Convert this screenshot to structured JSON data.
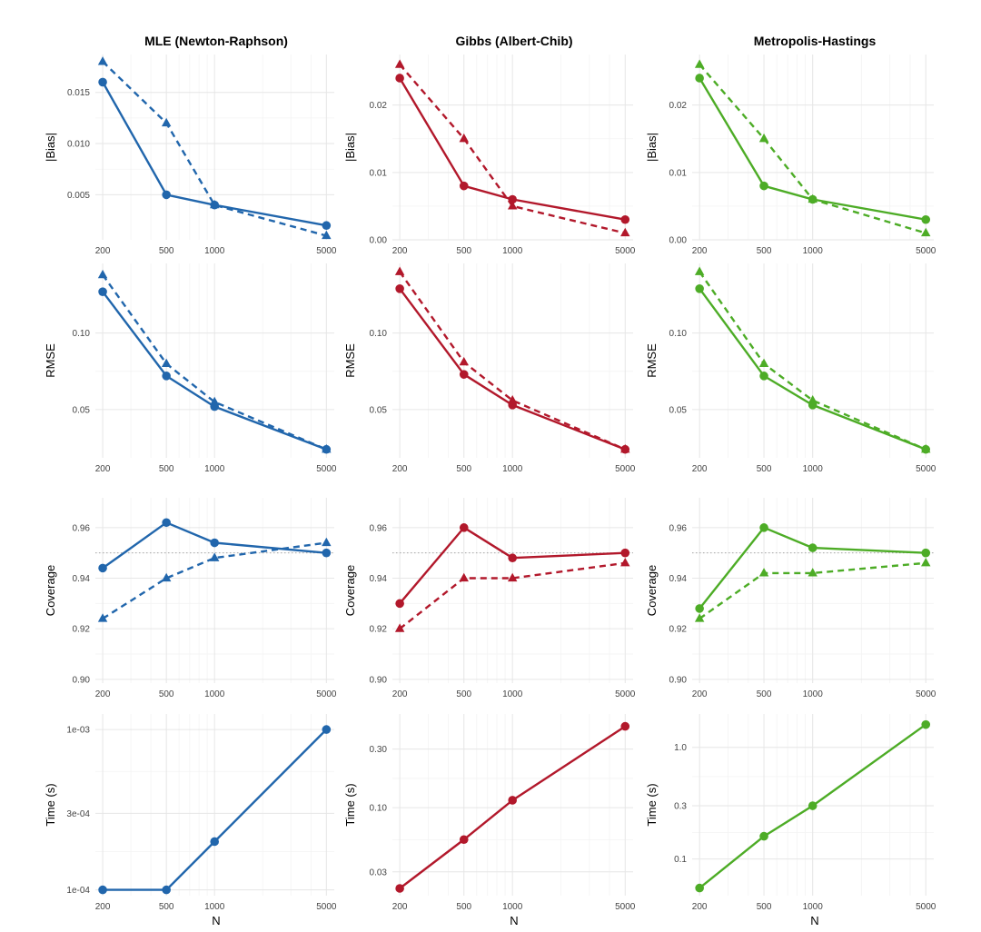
{
  "column_titles": [
    "MLE (Newton-Raphson)",
    "Gibbs (Albert-Chib)",
    "Metropolis-Hastings"
  ],
  "colors": [
    "#2166ac",
    "#b2182b",
    "#4dac26"
  ],
  "x_axis_label": "N",
  "chart_data": [
    {
      "type": "line",
      "row": 0,
      "col": 0,
      "title": "MLE (Newton-Raphson)",
      "ylabel": "|Bias|",
      "xscale": "log",
      "x": [
        200,
        500,
        1000,
        5000
      ],
      "xlim": [
        180,
        5600
      ],
      "ylim": [
        0.0006,
        0.0187
      ],
      "yticks": [
        0.005,
        0.01,
        0.015
      ],
      "ytick_labels": [
        "0.005",
        "0.010",
        "0.015"
      ],
      "series": [
        {
          "name": "solid-circle",
          "values": [
            0.016,
            0.005,
            0.004,
            0.002
          ]
        },
        {
          "name": "dashed-triangle",
          "values": [
            0.018,
            0.012,
            0.004,
            0.001
          ]
        }
      ]
    },
    {
      "type": "line",
      "row": 0,
      "col": 1,
      "title": "Gibbs (Albert-Chib)",
      "ylabel": "|Bias|",
      "xscale": "log",
      "x": [
        200,
        500,
        1000,
        5000
      ],
      "xlim": [
        180,
        5600
      ],
      "ylim": [
        0,
        0.0275
      ],
      "yticks": [
        0,
        0.01,
        0.02
      ],
      "ytick_labels": [
        "0.00",
        "0.01",
        "0.02"
      ],
      "series": [
        {
          "name": "solid-circle",
          "values": [
            0.024,
            0.008,
            0.006,
            0.003
          ]
        },
        {
          "name": "dashed-triangle",
          "values": [
            0.026,
            0.015,
            0.005,
            0.001
          ]
        }
      ]
    },
    {
      "type": "line",
      "row": 0,
      "col": 2,
      "title": "Metropolis-Hastings",
      "ylabel": "|Bias|",
      "xscale": "log",
      "x": [
        200,
        500,
        1000,
        5000
      ],
      "xlim": [
        180,
        5600
      ],
      "ylim": [
        0,
        0.0275
      ],
      "yticks": [
        0,
        0.01,
        0.02
      ],
      "ytick_labels": [
        "0.00",
        "0.01",
        "0.02"
      ],
      "series": [
        {
          "name": "solid-circle",
          "values": [
            0.024,
            0.008,
            0.006,
            0.003
          ]
        },
        {
          "name": "dashed-triangle",
          "values": [
            0.026,
            0.015,
            0.006,
            0.001
          ]
        }
      ]
    },
    {
      "type": "line",
      "row": 1,
      "col": 0,
      "title": "",
      "ylabel": "RMSE",
      "xscale": "log",
      "x": [
        200,
        500,
        1000,
        5000
      ],
      "xlim": [
        180,
        5600
      ],
      "ylim": [
        0.0185,
        0.1455
      ],
      "yticks": [
        0.05,
        0.1
      ],
      "ytick_labels": [
        "0.05",
        "0.10"
      ],
      "series": [
        {
          "name": "solid-circle",
          "values": [
            0.127,
            0.072,
            0.052,
            0.024
          ]
        },
        {
          "name": "dashed-triangle",
          "values": [
            0.138,
            0.08,
            0.055,
            0.024
          ]
        }
      ]
    },
    {
      "type": "line",
      "row": 1,
      "col": 1,
      "title": "",
      "ylabel": "RMSE",
      "xscale": "log",
      "x": [
        200,
        500,
        1000,
        5000
      ],
      "xlim": [
        180,
        5600
      ],
      "ylim": [
        0.0185,
        0.1455
      ],
      "yticks": [
        0.05,
        0.1
      ],
      "ytick_labels": [
        "0.05",
        "0.10"
      ],
      "series": [
        {
          "name": "solid-circle",
          "values": [
            0.129,
            0.073,
            0.053,
            0.024
          ]
        },
        {
          "name": "dashed-triangle",
          "values": [
            0.14,
            0.081,
            0.056,
            0.024
          ]
        }
      ]
    },
    {
      "type": "line",
      "row": 1,
      "col": 2,
      "title": "",
      "ylabel": "RMSE",
      "xscale": "log",
      "x": [
        200,
        500,
        1000,
        5000
      ],
      "xlim": [
        180,
        5600
      ],
      "ylim": [
        0.0185,
        0.1455
      ],
      "yticks": [
        0.05,
        0.1
      ],
      "ytick_labels": [
        "0.05",
        "0.10"
      ],
      "series": [
        {
          "name": "solid-circle",
          "values": [
            0.129,
            0.072,
            0.053,
            0.024
          ]
        },
        {
          "name": "dashed-triangle",
          "values": [
            0.14,
            0.08,
            0.056,
            0.024
          ]
        }
      ]
    },
    {
      "type": "line",
      "row": 2,
      "col": 0,
      "title": "",
      "ylabel": "Coverage",
      "xscale": "log",
      "x": [
        200,
        500,
        1000,
        5000
      ],
      "xlim": [
        180,
        5600
      ],
      "ylim": [
        0.8985,
        0.9718
      ],
      "yticks": [
        0.9,
        0.92,
        0.94,
        0.96
      ],
      "ytick_labels": [
        "0.90",
        "0.92",
        "0.94",
        "0.96"
      ],
      "reference_line": 0.95,
      "series": [
        {
          "name": "solid-circle",
          "values": [
            0.944,
            0.962,
            0.954,
            0.95
          ]
        },
        {
          "name": "dashed-triangle",
          "values": [
            0.924,
            0.94,
            0.948,
            0.954
          ]
        }
      ]
    },
    {
      "type": "line",
      "row": 2,
      "col": 1,
      "title": "",
      "ylabel": "Coverage",
      "xscale": "log",
      "x": [
        200,
        500,
        1000,
        5000
      ],
      "xlim": [
        180,
        5600
      ],
      "ylim": [
        0.8985,
        0.9718
      ],
      "yticks": [
        0.9,
        0.92,
        0.94,
        0.96
      ],
      "ytick_labels": [
        "0.90",
        "0.92",
        "0.94",
        "0.96"
      ],
      "reference_line": 0.95,
      "series": [
        {
          "name": "solid-circle",
          "values": [
            0.93,
            0.96,
            0.948,
            0.95
          ]
        },
        {
          "name": "dashed-triangle",
          "values": [
            0.92,
            0.94,
            0.94,
            0.946
          ]
        }
      ]
    },
    {
      "type": "line",
      "row": 2,
      "col": 2,
      "title": "",
      "ylabel": "Coverage",
      "xscale": "log",
      "x": [
        200,
        500,
        1000,
        5000
      ],
      "xlim": [
        180,
        5600
      ],
      "ylim": [
        0.8985,
        0.9718
      ],
      "yticks": [
        0.9,
        0.92,
        0.94,
        0.96
      ],
      "ytick_labels": [
        "0.90",
        "0.92",
        "0.94",
        "0.96"
      ],
      "reference_line": 0.95,
      "series": [
        {
          "name": "solid-circle",
          "values": [
            0.928,
            0.96,
            0.952,
            0.95
          ]
        },
        {
          "name": "dashed-triangle",
          "values": [
            0.924,
            0.942,
            0.942,
            0.946
          ]
        }
      ]
    },
    {
      "type": "line",
      "row": 3,
      "col": 0,
      "title": "",
      "ylabel": "Time (s)",
      "xlabel": "N",
      "xscale": "log",
      "yscale": "log",
      "x": [
        200,
        500,
        1000,
        5000
      ],
      "xlim": [
        180,
        5600
      ],
      "ylim": [
        9.2e-05,
        0.00125
      ],
      "yticks": [
        0.0001,
        0.0003,
        0.001
      ],
      "ytick_labels": [
        "1e-04",
        "3e-04",
        "1e-03"
      ],
      "series": [
        {
          "name": "solid-circle",
          "values": [
            0.0001,
            0.0001,
            0.0002,
            0.001
          ]
        }
      ]
    },
    {
      "type": "line",
      "row": 3,
      "col": 1,
      "title": "",
      "ylabel": "Time (s)",
      "xlabel": "N",
      "xscale": "log",
      "yscale": "log",
      "x": [
        200,
        500,
        1000,
        5000
      ],
      "xlim": [
        180,
        5600
      ],
      "ylim": [
        0.0192,
        0.58
      ],
      "yticks": [
        0.03,
        0.1,
        0.3
      ],
      "ytick_labels": [
        "0.03",
        "0.10",
        "0.30"
      ],
      "series": [
        {
          "name": "solid-circle",
          "values": [
            0.022,
            0.055,
            0.115,
            0.46
          ]
        }
      ]
    },
    {
      "type": "line",
      "row": 3,
      "col": 2,
      "title": "",
      "ylabel": "Time (s)",
      "xlabel": "N",
      "xscale": "log",
      "yscale": "log",
      "x": [
        200,
        500,
        1000,
        5000
      ],
      "xlim": [
        180,
        5600
      ],
      "ylim": [
        0.047,
        1.99
      ],
      "yticks": [
        0.1,
        0.3,
        1.0
      ],
      "ytick_labels": [
        "0.1",
        "0.3",
        "1.0"
      ],
      "series": [
        {
          "name": "solid-circle",
          "values": [
            0.055,
            0.16,
            0.3,
            1.6
          ]
        }
      ]
    }
  ]
}
